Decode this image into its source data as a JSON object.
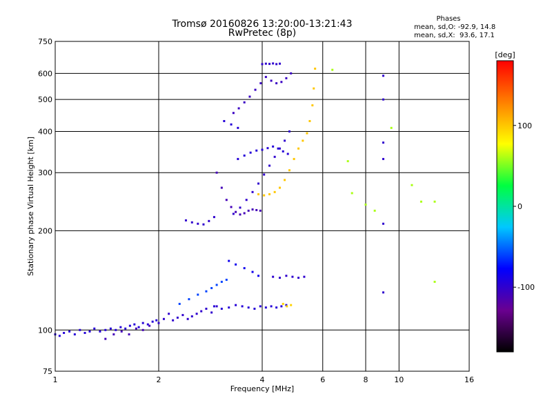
{
  "title": "Tromsø 20160826 13:20:00-13:21:43",
  "subtitle": "RwPretec (8p)",
  "phase_stats": {
    "header": "Phases",
    "line_o": "mean, sd,O: -92.9, 14.8",
    "line_x": "mean, sd,X:  93.6, 17.1"
  },
  "chart_data": {
    "type": "scatter",
    "title": "Tromsø 20160826 13:20:00-13:21:43",
    "subtitle": "RwPretec (8p)",
    "xlabel": "Frequency [MHz]",
    "ylabel": "Stationary phase Virtual Height [km]",
    "x_scale": "log",
    "y_scale": "log",
    "xlim": [
      1,
      16
    ],
    "ylim": [
      75,
      750
    ],
    "x_ticks": [
      1,
      2,
      4,
      6,
      8,
      10,
      16
    ],
    "x_tick_labels": [
      "1",
      "2",
      "4",
      "6",
      "8",
      "10",
      "16"
    ],
    "y_ticks": [
      75,
      100,
      200,
      300,
      400,
      500,
      600,
      750
    ],
    "y_tick_labels": [
      "75",
      "100",
      "200",
      "300",
      "400",
      "500",
      "600",
      "750"
    ],
    "grid": true,
    "colorbar": {
      "label": "[deg]",
      "range": [
        -180,
        180
      ],
      "ticks": [
        100,
        0,
        -100
      ],
      "tick_labels": [
        "100",
        "0",
        "-100"
      ],
      "colors": [
        "#000000",
        "#6a0090",
        "#0000ff",
        "#00c8ff",
        "#00ff40",
        "#ffff00",
        "#ff8000",
        "#ff0000"
      ]
    },
    "series": [
      {
        "phase": -95,
        "x": [
          1.0,
          1.03,
          1.06,
          1.1,
          1.14,
          1.18,
          1.22,
          1.26,
          1.3,
          1.35,
          1.4,
          1.45,
          1.5,
          1.55,
          1.6,
          1.65,
          1.7,
          1.75,
          1.8,
          1.86,
          1.92,
          1.97
        ],
        "y": [
          97,
          96,
          98,
          99,
          97,
          100,
          98,
          99,
          101,
          99,
          100,
          101,
          100,
          102,
          101,
          103,
          104,
          102,
          105,
          104,
          106,
          107
        ]
      },
      {
        "phase": -110,
        "x": [
          1.4,
          1.48,
          1.56,
          1.64,
          1.72,
          1.8,
          1.88
        ],
        "y": [
          94,
          97,
          99,
          97,
          101,
          100,
          103
        ]
      },
      {
        "phase": -100,
        "x": [
          2.0,
          2.07,
          2.14,
          2.2,
          2.27,
          2.35,
          2.43,
          2.5,
          2.58,
          2.66,
          2.75,
          2.85,
          2.95
        ],
        "y": [
          105,
          108,
          112,
          107,
          109,
          111,
          108,
          110,
          112,
          114,
          116,
          113,
          118
        ]
      },
      {
        "phase": -95,
        "x": [
          2.9,
          3.05,
          3.2,
          3.35,
          3.5,
          3.65,
          3.8,
          3.95,
          4.1,
          4.25,
          4.4,
          4.55,
          4.7
        ],
        "y": [
          118,
          116,
          117,
          119,
          118,
          117,
          116,
          118,
          117,
          118,
          117,
          118,
          119
        ]
      },
      {
        "phase": -60,
        "x": [
          2.3,
          2.45,
          2.6,
          2.75,
          2.85,
          2.95,
          3.05,
          3.15
        ],
        "y": [
          120,
          124,
          128,
          131,
          134,
          137,
          140,
          142
        ]
      },
      {
        "phase": -85,
        "x": [
          3.2,
          3.35,
          3.55,
          3.75,
          3.9
        ],
        "y": [
          162,
          158,
          154,
          150,
          146
        ]
      },
      {
        "phase": -100,
        "x": [
          4.3,
          4.5,
          4.7,
          4.9,
          5.1,
          5.3
        ],
        "y": [
          145,
          144,
          146,
          145,
          144,
          145
        ]
      },
      {
        "phase": 95,
        "x": [
          4.6,
          4.72,
          4.85
        ],
        "y": [
          120,
          118,
          119
        ]
      },
      {
        "phase": -100,
        "x": [
          2.4,
          2.5,
          2.6,
          2.7,
          2.8,
          2.9
        ],
        "y": [
          215,
          212,
          210,
          209,
          214,
          220
        ]
      },
      {
        "phase": -110,
        "x": [
          2.95,
          3.05,
          3.15,
          3.25,
          3.35,
          3.45,
          3.55,
          3.65,
          3.75,
          3.85,
          3.95
        ],
        "y": [
          300,
          270,
          248,
          236,
          228,
          224,
          226,
          230,
          232,
          231,
          230
        ]
      },
      {
        "phase": -100,
        "x": [
          3.3,
          3.45,
          3.6,
          3.75,
          3.9,
          4.05,
          4.2,
          4.35,
          4.5,
          4.65,
          4.8
        ],
        "y": [
          225,
          235,
          248,
          262,
          278,
          296,
          315,
          335,
          355,
          375,
          400
        ]
      },
      {
        "phase": -95,
        "x": [
          3.4,
          3.55,
          3.7,
          3.85,
          4.0,
          4.15,
          4.3,
          4.45,
          4.6,
          4.75
        ],
        "y": [
          330,
          338,
          345,
          350,
          352,
          356,
          360,
          355,
          348,
          342
        ]
      },
      {
        "phase": -105,
        "x": [
          3.3,
          3.42,
          3.55,
          3.68,
          3.82,
          3.96,
          4.1,
          4.25,
          4.4,
          4.55,
          4.7,
          4.85
        ],
        "y": [
          455,
          470,
          490,
          510,
          535,
          560,
          585,
          570,
          560,
          565,
          580,
          600
        ]
      },
      {
        "phase": -100,
        "x": [
          4.0,
          4.1,
          4.2,
          4.3,
          4.4,
          4.5
        ],
        "y": [
          640,
          642,
          641,
          643,
          640,
          642
        ]
      },
      {
        "phase": -95,
        "x": [
          3.1,
          3.25,
          3.4
        ],
        "y": [
          430,
          420,
          410
        ]
      },
      {
        "phase": 100,
        "x": [
          3.9,
          4.05,
          4.2,
          4.35,
          4.5,
          4.65,
          4.8,
          4.95,
          5.1,
          5.25,
          5.4,
          5.5,
          5.6,
          5.65,
          5.7
        ],
        "y": [
          258,
          256,
          258,
          262,
          270,
          285,
          305,
          330,
          355,
          375,
          395,
          430,
          480,
          540,
          620
        ]
      },
      {
        "phase": -100,
        "x": [
          9.0,
          9.0,
          9.0,
          9.0,
          9.0,
          9.0
        ],
        "y": [
          590,
          500,
          370,
          330,
          210,
          130
        ]
      },
      {
        "phase": 60,
        "x": [
          6.4,
          7.1,
          7.3,
          8.0,
          8.5,
          9.5,
          10.9,
          11.6,
          12.7,
          12.7
        ],
        "y": [
          615,
          325,
          260,
          240,
          230,
          410,
          275,
          245,
          245,
          140
        ]
      }
    ]
  }
}
